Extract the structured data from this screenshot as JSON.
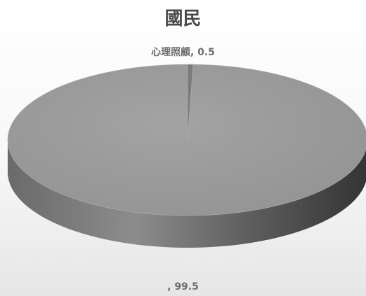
{
  "chart_data": {
    "type": "pie",
    "title": "國民",
    "slices": [
      {
        "label": "心理照顧",
        "value": 0.5
      },
      {
        "label": "",
        "value": 99.5
      }
    ],
    "data_labels": [
      "心理照顧, 0.5",
      ", 99.5"
    ],
    "colors": {
      "top": "#9a9a9a",
      "side_dark": "#3e3e3e",
      "side_light": "#8a8a8a",
      "slice_small": "#7b7b7b"
    }
  }
}
